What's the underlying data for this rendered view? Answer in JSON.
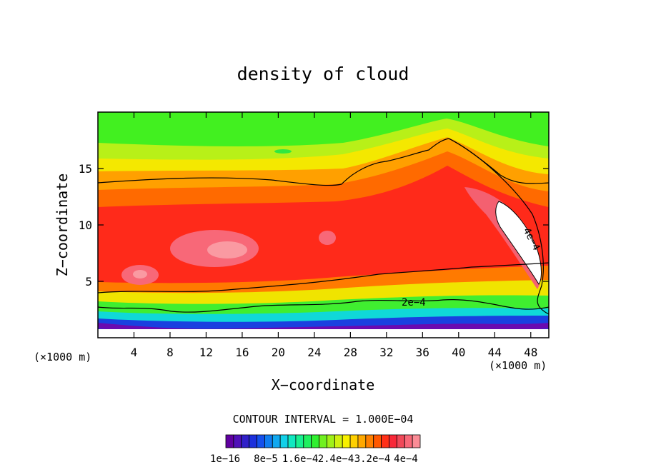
{
  "chart_data": {
    "type": "heatmap",
    "title": "density of cloud",
    "xlabel": "X−coordinate",
    "ylabel": "Z−coordinate",
    "x_units": "(×1000 m)",
    "y_units": "(×1000 m)",
    "xlim": [
      0,
      50
    ],
    "ylim": [
      0,
      20
    ],
    "x_ticks": [
      4,
      8,
      12,
      16,
      20,
      24,
      28,
      32,
      36,
      40,
      44,
      48
    ],
    "y_ticks": [
      5,
      10,
      15
    ],
    "contour_interval_text": "CONTOUR INTERVAL = 1.000E−04",
    "contour_labels": [
      "2e−4",
      "4e−4"
    ],
    "colorbar": {
      "tick_labels": [
        "1e−16",
        "8e−5",
        "1.6e−4",
        "2.4e−4",
        "3.2e−4",
        "4e−4"
      ],
      "colors": [
        "#6000a0",
        "#5010b8",
        "#3020c8",
        "#1c30dc",
        "#1450ec",
        "#0f7df0",
        "#10a8f0",
        "#12d0e8",
        "#10e8c0",
        "#18f090",
        "#20f060",
        "#30f030",
        "#70f020",
        "#a0f018",
        "#d0f010",
        "#f8f000",
        "#ffd000",
        "#ffa800",
        "#ff8000",
        "#ff5800",
        "#ff3018",
        "#f82838",
        "#f04858",
        "#f86878",
        "#fa8c96"
      ]
    }
  }
}
